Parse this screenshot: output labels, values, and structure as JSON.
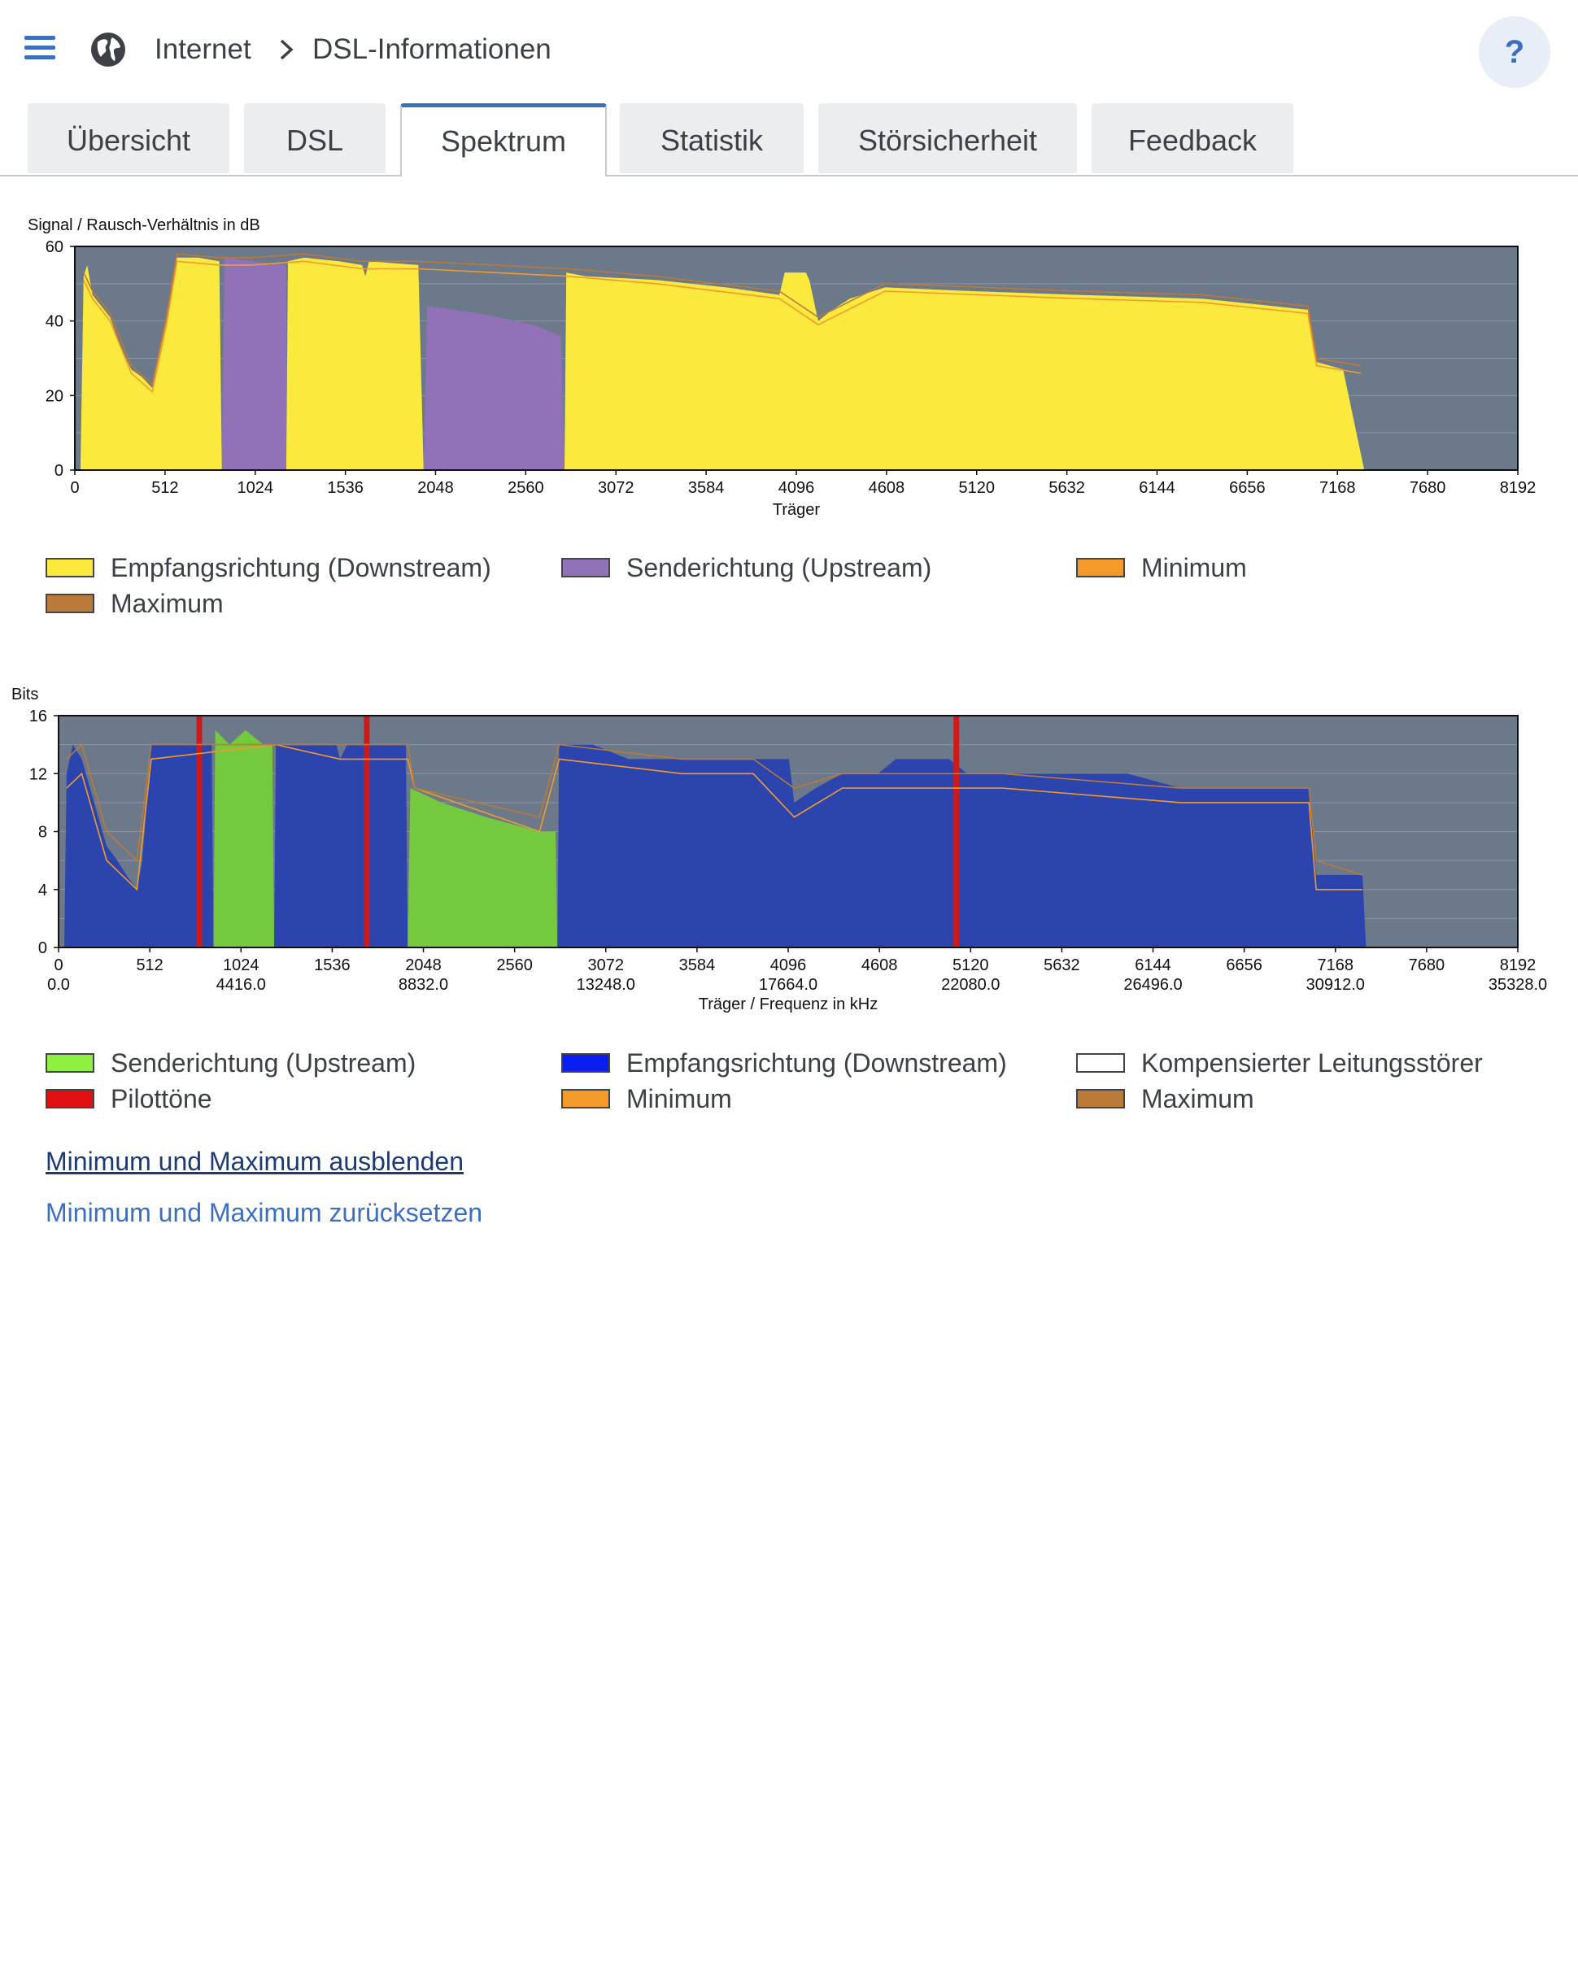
{
  "breadcrumb": {
    "section": "Internet",
    "page": "DSL-Informationen"
  },
  "help": {
    "label": "?"
  },
  "icons": {
    "menu": "menu-icon",
    "globe": "globe-icon",
    "chevron": "chevron-right-icon"
  },
  "tabs": [
    {
      "label": "Übersicht",
      "active": false
    },
    {
      "label": "DSL",
      "active": false
    },
    {
      "label": "Spektrum",
      "active": true
    },
    {
      "label": "Statistik",
      "active": false
    },
    {
      "label": "Störsicherheit",
      "active": false
    },
    {
      "label": "Feedback",
      "active": false
    }
  ],
  "colors": {
    "accent": "#3d6fc0",
    "plot_bg": "#6c798a",
    "snr_downstream": "#fbe93d",
    "snr_upstream": "#9172b8",
    "bits_upstream": "#74c93e",
    "bits_downstream": "#2c44ad",
    "pilot": "#cc1b1b",
    "minimum": "#f39a2b",
    "maximum": "#b97a3b"
  },
  "chart_data": [
    {
      "type": "area",
      "ylabel": "Signal / Rausch-Verhältnis in dB",
      "xlabel": "Träger",
      "xlim": [
        0,
        8192
      ],
      "ylim": [
        0,
        60
      ],
      "x_ticks": [
        "0",
        "512",
        "1024",
        "1536",
        "2048",
        "2560",
        "3072",
        "3584",
        "4096",
        "4608",
        "5120",
        "5632",
        "6144",
        "6656",
        "7168",
        "7680",
        "8192"
      ],
      "y_ticks": [
        "0",
        "20",
        "40",
        "60"
      ],
      "series": [
        {
          "name": "Empfangsrichtung (Downstream)",
          "points": [
            [
              32,
              0
            ],
            [
              50,
              52
            ],
            [
              70,
              55
            ],
            [
              100,
              47
            ],
            [
              150,
              44
            ],
            [
              200,
              41
            ],
            [
              260,
              33
            ],
            [
              320,
              27
            ],
            [
              380,
              25
            ],
            [
              440,
              22
            ],
            [
              470,
              29
            ],
            [
              520,
              40
            ],
            [
              560,
              53
            ],
            [
              580,
              57
            ],
            [
              700,
              57
            ],
            [
              820,
              56
            ],
            [
              835,
              0
            ],
            [
              1200,
              0
            ],
            [
              1210,
              56
            ],
            [
              1300,
              57
            ],
            [
              1500,
              56
            ],
            [
              1630,
              55
            ],
            [
              1650,
              52
            ],
            [
              1670,
              56
            ],
            [
              1950,
              55
            ],
            [
              1980,
              0
            ],
            [
              2780,
              0
            ],
            [
              2790,
              53
            ],
            [
              2900,
              52
            ],
            [
              3300,
              51
            ],
            [
              3700,
              49
            ],
            [
              4000,
              47
            ],
            [
              4030,
              53
            ],
            [
              4150,
              53
            ],
            [
              4170,
              51
            ],
            [
              4220,
              40
            ],
            [
              4300,
              43
            ],
            [
              4400,
              46
            ],
            [
              4600,
              49
            ],
            [
              5100,
              48
            ],
            [
              5700,
              47
            ],
            [
              6400,
              46
            ],
            [
              7000,
              43
            ],
            [
              7050,
              29
            ],
            [
              7200,
              27
            ],
            [
              7320,
              0
            ]
          ]
        },
        {
          "name": "Senderichtung (Upstream)",
          "points": [
            [
              835,
              0
            ],
            [
              850,
              57
            ],
            [
              1000,
              56
            ],
            [
              1200,
              55
            ],
            [
              1200,
              0
            ],
            [
              1980,
              0
            ],
            [
              2000,
              44
            ],
            [
              2300,
              42
            ],
            [
              2600,
              39
            ],
            [
              2760,
              36
            ],
            [
              2780,
              0
            ]
          ]
        },
        {
          "name": "Minimum",
          "points": [
            [
              50,
              51
            ],
            [
              100,
              46
            ],
            [
              200,
              40
            ],
            [
              320,
              26
            ],
            [
              440,
              21
            ],
            [
              520,
              39
            ],
            [
              580,
              56
            ],
            [
              820,
              55
            ],
            [
              1000,
              55
            ],
            [
              1300,
              56
            ],
            [
              1630,
              54
            ],
            [
              1950,
              54
            ],
            [
              2800,
              52
            ],
            [
              3300,
              50
            ],
            [
              4000,
              46
            ],
            [
              4220,
              39
            ],
            [
              4600,
              48
            ],
            [
              5700,
              46
            ],
            [
              6400,
              45
            ],
            [
              7000,
              42
            ],
            [
              7050,
              28
            ],
            [
              7300,
              26
            ]
          ]
        },
        {
          "name": "Maximum",
          "points": [
            [
              50,
              53
            ],
            [
              100,
              48
            ],
            [
              200,
              42
            ],
            [
              320,
              28
            ],
            [
              440,
              23
            ],
            [
              520,
              41
            ],
            [
              580,
              58
            ],
            [
              820,
              57
            ],
            [
              1000,
              57
            ],
            [
              1300,
              58
            ],
            [
              1630,
              56
            ],
            [
              1950,
              56
            ],
            [
              2800,
              54
            ],
            [
              3300,
              52
            ],
            [
              4000,
              48
            ],
            [
              4220,
              41
            ],
            [
              4600,
              50
            ],
            [
              5700,
              48
            ],
            [
              6400,
              47
            ],
            [
              7000,
              44
            ],
            [
              7050,
              30
            ],
            [
              7300,
              28
            ]
          ]
        }
      ]
    },
    {
      "type": "area",
      "ylabel": "Bits",
      "xlabel": "Träger / Frequenz in kHz",
      "xlim": [
        0,
        8192
      ],
      "ylim": [
        0,
        16
      ],
      "x_ticks": [
        "0",
        "512",
        "1024",
        "1536",
        "2048",
        "2560",
        "3072",
        "3584",
        "4096",
        "4608",
        "5120",
        "5632",
        "6144",
        "6656",
        "7168",
        "7680",
        "8192"
      ],
      "freq_ticks": [
        "0.0",
        "4416.0",
        "8832.0",
        "13248.0",
        "17664.0",
        "22080.0",
        "26496.0",
        "30912.0",
        "35328.0"
      ],
      "y_ticks": [
        "0",
        "4",
        "8",
        "12",
        "16"
      ],
      "series": [
        {
          "name": "Empfangsrichtung (Downstream)",
          "points": [
            [
              32,
              0
            ],
            [
              45,
              12
            ],
            [
              80,
              14
            ],
            [
              130,
              13
            ],
            [
              200,
              10
            ],
            [
              270,
              7
            ],
            [
              330,
              6
            ],
            [
              380,
              5
            ],
            [
              440,
              4
            ],
            [
              470,
              6
            ],
            [
              520,
              14
            ],
            [
              780,
              14
            ],
            [
              860,
              14
            ],
            [
              870,
              0
            ],
            [
              1210,
              0
            ],
            [
              1220,
              14
            ],
            [
              1560,
              14
            ],
            [
              1580,
              13
            ],
            [
              1620,
              14
            ],
            [
              1950,
              14
            ],
            [
              1960,
              0
            ],
            [
              2800,
              0
            ],
            [
              2810,
              14
            ],
            [
              3000,
              14
            ],
            [
              3200,
              13
            ],
            [
              3500,
              13
            ],
            [
              3900,
              13
            ],
            [
              4100,
              13
            ],
            [
              4130,
              10
            ],
            [
              4250,
              11
            ],
            [
              4400,
              12
            ],
            [
              4600,
              12
            ],
            [
              4700,
              13
            ],
            [
              5000,
              13
            ],
            [
              5100,
              12
            ],
            [
              5300,
              12
            ],
            [
              6000,
              12
            ],
            [
              6300,
              11
            ],
            [
              6800,
              11
            ],
            [
              7020,
              11
            ],
            [
              7060,
              5
            ],
            [
              7160,
              5
            ],
            [
              7320,
              5
            ],
            [
              7340,
              0
            ]
          ]
        },
        {
          "name": "Senderichtung (Upstream)",
          "points": [
            [
              870,
              0
            ],
            [
              880,
              15
            ],
            [
              960,
              14
            ],
            [
              1050,
              15
            ],
            [
              1150,
              14
            ],
            [
              1200,
              14
            ],
            [
              1210,
              0
            ],
            [
              1960,
              0
            ],
            [
              1975,
              11
            ],
            [
              2150,
              10
            ],
            [
              2400,
              9
            ],
            [
              2700,
              8
            ],
            [
              2790,
              8
            ],
            [
              2800,
              0
            ]
          ]
        },
        {
          "name": "Pilottöne",
          "carriers": [
            790,
            1730,
            5040
          ]
        },
        {
          "name": "Minimum",
          "points": [
            [
              45,
              11
            ],
            [
              130,
              12
            ],
            [
              270,
              6
            ],
            [
              440,
              4
            ],
            [
              520,
              13
            ],
            [
              1220,
              14
            ],
            [
              1580,
              13
            ],
            [
              1960,
              13
            ],
            [
              2000,
              11
            ],
            [
              2700,
              8
            ],
            [
              2810,
              13
            ],
            [
              3500,
              12
            ],
            [
              3900,
              12
            ],
            [
              4130,
              9
            ],
            [
              4400,
              11
            ],
            [
              5300,
              11
            ],
            [
              6300,
              10
            ],
            [
              7020,
              10
            ],
            [
              7060,
              4
            ],
            [
              7320,
              4
            ]
          ]
        },
        {
          "name": "Maximum",
          "points": [
            [
              45,
              13
            ],
            [
              130,
              14
            ],
            [
              270,
              8
            ],
            [
              440,
              6
            ],
            [
              520,
              14
            ],
            [
              1220,
              14
            ],
            [
              1580,
              14
            ],
            [
              1960,
              14
            ],
            [
              2000,
              11
            ],
            [
              2700,
              9
            ],
            [
              2810,
              14
            ],
            [
              3500,
              13
            ],
            [
              3900,
              13
            ],
            [
              4130,
              11
            ],
            [
              4400,
              12
            ],
            [
              5300,
              12
            ],
            [
              6300,
              11
            ],
            [
              7020,
              11
            ],
            [
              7060,
              6
            ],
            [
              7320,
              5
            ]
          ]
        },
        {
          "name": "Kompensierter Leitungsstörer",
          "points": []
        }
      ]
    }
  ],
  "legends": [
    {
      "items": [
        {
          "label": "Empfangsrichtung (Downstream)",
          "color": "#fbe93d"
        },
        {
          "label": "Senderichtung (Upstream)",
          "color": "#9172b8"
        },
        {
          "label": "Minimum",
          "color": "#f39a2b"
        },
        {
          "label": "Maximum",
          "color": "#b97a3b"
        }
      ]
    },
    {
      "items": [
        {
          "label": "Senderichtung (Upstream)",
          "color": "#8fef42"
        },
        {
          "label": "Empfangsrichtung (Downstream)",
          "color": "#0a1ef0"
        },
        {
          "label": "Kompensierter Leitungsstörer",
          "color": "#ffffff"
        },
        {
          "label": "Pilottöne",
          "color": "#e01010"
        },
        {
          "label": "Minimum",
          "color": "#f39a2b"
        },
        {
          "label": "Maximum",
          "color": "#b97a3b"
        }
      ]
    }
  ],
  "links": {
    "hide_minmax": "Minimum und Maximum ausblenden",
    "reset_minmax": "Minimum und Maximum zurücksetzen"
  }
}
